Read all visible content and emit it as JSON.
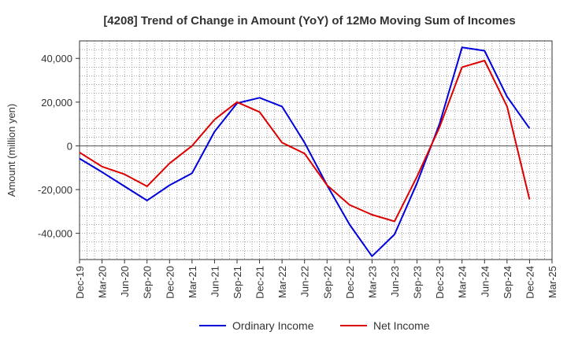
{
  "chart_data": {
    "type": "line",
    "title": "[4208]  Trend of Change in Amount (YoY) of 12Mo Moving Sum of Incomes",
    "xlabel": "",
    "ylabel": "Amount (million yen)",
    "ylim": [
      -52000,
      48000
    ],
    "yticks": [
      -40000,
      -20000,
      0,
      20000,
      40000
    ],
    "ytick_labels": [
      "-40,000",
      "-20,000",
      "0",
      "20,000",
      "40,000"
    ],
    "grid": true,
    "legend_position": "bottom",
    "categories": [
      "Dec-19",
      "Mar-20",
      "Jun-20",
      "Sep-20",
      "Dec-20",
      "Mar-21",
      "Jun-21",
      "Sep-21",
      "Dec-21",
      "Mar-22",
      "Jun-22",
      "Sep-22",
      "Dec-22",
      "Mar-23",
      "Jun-23",
      "Sep-23",
      "Dec-23",
      "Mar-24",
      "Jun-24",
      "Sep-24",
      "Dec-24",
      "Mar-25"
    ],
    "series": [
      {
        "name": "Ordinary Income",
        "color": "#0000dd",
        "values": [
          -5800,
          -12000,
          -18500,
          -25000,
          -18000,
          -12500,
          6500,
          19500,
          22000,
          18000,
          1500,
          -18000,
          -36000,
          -50500,
          -40500,
          -17000,
          10000,
          45000,
          43500,
          22500,
          8000,
          null
        ]
      },
      {
        "name": "Net Income",
        "color": "#dd0000",
        "values": [
          -3000,
          -9500,
          -13000,
          -18500,
          -8000,
          0,
          12000,
          20000,
          15500,
          1500,
          -3500,
          -18000,
          -27000,
          -31500,
          -34500,
          -14000,
          8500,
          36000,
          39000,
          18000,
          -24500,
          null
        ]
      }
    ]
  }
}
